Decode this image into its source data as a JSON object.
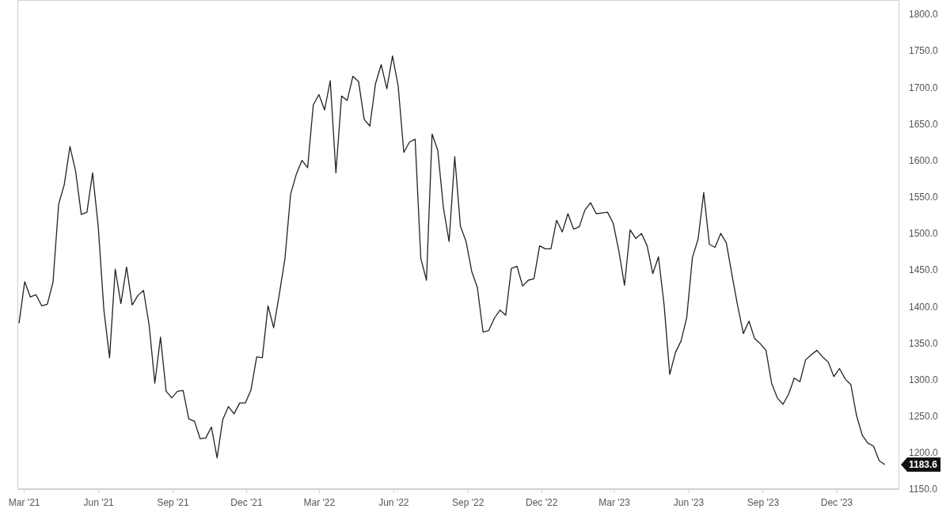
{
  "chart_data": {
    "type": "line",
    "x": [
      "2021-02-23",
      "2021-03-02",
      "2021-03-09",
      "2021-03-16",
      "2021-03-23",
      "2021-03-30",
      "2021-04-06",
      "2021-04-13",
      "2021-04-20",
      "2021-04-27",
      "2021-05-04",
      "2021-05-11",
      "2021-05-18",
      "2021-05-25",
      "2021-06-01",
      "2021-06-08",
      "2021-06-15",
      "2021-06-22",
      "2021-06-29",
      "2021-07-06",
      "2021-07-13",
      "2021-07-20",
      "2021-07-27",
      "2021-08-03",
      "2021-08-10",
      "2021-08-17",
      "2021-08-24",
      "2021-08-31",
      "2021-09-07",
      "2021-09-14",
      "2021-09-21",
      "2021-09-28",
      "2021-10-05",
      "2021-10-12",
      "2021-10-19",
      "2021-10-26",
      "2021-11-02",
      "2021-11-09",
      "2021-11-16",
      "2021-11-23",
      "2021-11-30",
      "2021-12-07",
      "2021-12-14",
      "2021-12-21",
      "2021-12-28",
      "2022-01-04",
      "2022-01-11",
      "2022-01-18",
      "2022-01-25",
      "2022-02-01",
      "2022-02-08",
      "2022-02-15",
      "2022-02-22",
      "2022-03-01",
      "2022-03-08",
      "2022-03-15",
      "2022-03-22",
      "2022-03-29",
      "2022-04-05",
      "2022-04-12",
      "2022-04-19",
      "2022-04-26",
      "2022-05-03",
      "2022-05-10",
      "2022-05-17",
      "2022-05-24",
      "2022-05-31",
      "2022-06-07",
      "2022-06-14",
      "2022-06-21",
      "2022-06-28",
      "2022-07-05",
      "2022-07-12",
      "2022-07-19",
      "2022-07-26",
      "2022-08-02",
      "2022-08-09",
      "2022-08-16",
      "2022-08-23",
      "2022-08-30",
      "2022-09-06",
      "2022-09-13",
      "2022-09-20",
      "2022-09-27",
      "2022-10-04",
      "2022-10-11",
      "2022-10-18",
      "2022-10-25",
      "2022-11-01",
      "2022-11-08",
      "2022-11-15",
      "2022-11-22",
      "2022-11-29",
      "2022-12-06",
      "2022-12-13",
      "2022-12-20",
      "2022-12-27",
      "2023-01-03",
      "2023-01-10",
      "2023-01-17",
      "2023-01-24",
      "2023-01-31",
      "2023-02-07",
      "2023-02-14",
      "2023-02-21",
      "2023-02-28",
      "2023-03-07",
      "2023-03-14",
      "2023-03-21",
      "2023-03-28",
      "2023-04-04",
      "2023-04-11",
      "2023-04-18",
      "2023-04-25",
      "2023-05-02",
      "2023-05-09",
      "2023-05-16",
      "2023-05-23",
      "2023-05-30",
      "2023-06-06",
      "2023-06-13",
      "2023-06-20",
      "2023-06-27",
      "2023-07-04",
      "2023-07-11",
      "2023-07-18",
      "2023-07-25",
      "2023-08-01",
      "2023-08-08",
      "2023-08-15",
      "2023-08-22",
      "2023-08-29",
      "2023-09-05",
      "2023-09-12",
      "2023-09-19",
      "2023-09-26",
      "2023-10-03",
      "2023-10-10",
      "2023-10-17",
      "2023-10-24",
      "2023-10-31",
      "2023-11-07",
      "2023-11-14",
      "2023-11-21",
      "2023-11-28",
      "2023-12-05",
      "2023-12-12",
      "2023-12-19",
      "2023-12-26",
      "2024-01-02",
      "2024-01-09",
      "2024-01-16",
      "2024-01-23",
      "2024-01-30"
    ],
    "series": [
      {
        "color": "#222222",
        "values": [
          1377,
          1434,
          1413,
          1416,
          1401,
          1403,
          1433,
          1540,
          1567,
          1619,
          1585,
          1526,
          1529,
          1583,
          1509,
          1395,
          1330,
          1451,
          1404,
          1454,
          1402,
          1415,
          1422,
          1374,
          1295,
          1358,
          1284,
          1275,
          1284,
          1285,
          1246,
          1243,
          1219,
          1220,
          1235,
          1193,
          1245,
          1263,
          1253,
          1268,
          1268,
          1286,
          1331,
          1330,
          1401,
          1371,
          1417,
          1466,
          1554,
          1581,
          1600,
          1590,
          1676,
          1690,
          1669,
          1709,
          1583,
          1688,
          1682,
          1715,
          1708,
          1656,
          1647,
          1705,
          1731,
          1698,
          1743,
          1702,
          1611,
          1625,
          1629,
          1466,
          1436,
          1636,
          1614,
          1535,
          1489,
          1605,
          1510,
          1489,
          1448,
          1426,
          1365,
          1367,
          1384,
          1395,
          1388,
          1452,
          1455,
          1428,
          1436,
          1438,
          1483,
          1479,
          1479,
          1518,
          1502,
          1527,
          1506,
          1509,
          1532,
          1542,
          1527,
          1528,
          1529,
          1514,
          1476,
          1429,
          1505,
          1493,
          1500,
          1483,
          1445,
          1468,
          1402,
          1307,
          1337,
          1353,
          1385,
          1467,
          1492,
          1556,
          1485,
          1481,
          1500,
          1487,
          1443,
          1401,
          1363,
          1380,
          1356,
          1349,
          1340,
          1295,
          1275,
          1266,
          1280,
          1302,
          1297,
          1327,
          1334,
          1340,
          1331,
          1324,
          1304,
          1315,
          1301,
          1293,
          1251,
          1224,
          1213,
          1209,
          1189,
          1183.6
        ]
      }
    ],
    "xlim": [
      "2021-02-21",
      "2024-02-16"
    ],
    "xticks": [
      {
        "value": "2021-03-01",
        "label": "Mar '21"
      },
      {
        "value": "2021-06-01",
        "label": "Jun '21"
      },
      {
        "value": "2021-09-01",
        "label": "Sep '21"
      },
      {
        "value": "2021-12-01",
        "label": "Dec '21"
      },
      {
        "value": "2022-03-01",
        "label": "Mar '22"
      },
      {
        "value": "2022-06-01",
        "label": "Jun '22"
      },
      {
        "value": "2022-09-01",
        "label": "Sep '22"
      },
      {
        "value": "2022-12-01",
        "label": "Dec '22"
      },
      {
        "value": "2023-03-01",
        "label": "Mar '23"
      },
      {
        "value": "2023-06-01",
        "label": "Jun '23"
      },
      {
        "value": "2023-09-01",
        "label": "Sep '23"
      },
      {
        "value": "2023-12-01",
        "label": "Dec '23"
      }
    ],
    "ylim": [
      1150,
      1800
    ],
    "yticks": [
      {
        "value": 1150,
        "label": "1150.0"
      },
      {
        "value": 1200,
        "label": "1200.0"
      },
      {
        "value": 1250,
        "label": "1250.0"
      },
      {
        "value": 1300,
        "label": "1300.0"
      },
      {
        "value": 1350,
        "label": "1350.0"
      },
      {
        "value": 1400,
        "label": "1400.0"
      },
      {
        "value": 1450,
        "label": "1450.0"
      },
      {
        "value": 1500,
        "label": "1500.0"
      },
      {
        "value": 1550,
        "label": "1550.0"
      },
      {
        "value": 1600,
        "label": "1600.0"
      },
      {
        "value": 1650,
        "label": "1650.0"
      },
      {
        "value": 1700,
        "label": "1700.0"
      },
      {
        "value": 1750,
        "label": "1750.0"
      },
      {
        "value": 1800,
        "label": "1800.0"
      }
    ],
    "annotations": [
      "1183.6"
    ],
    "grid": false,
    "marker": "none",
    "line_style": "solid"
  }
}
